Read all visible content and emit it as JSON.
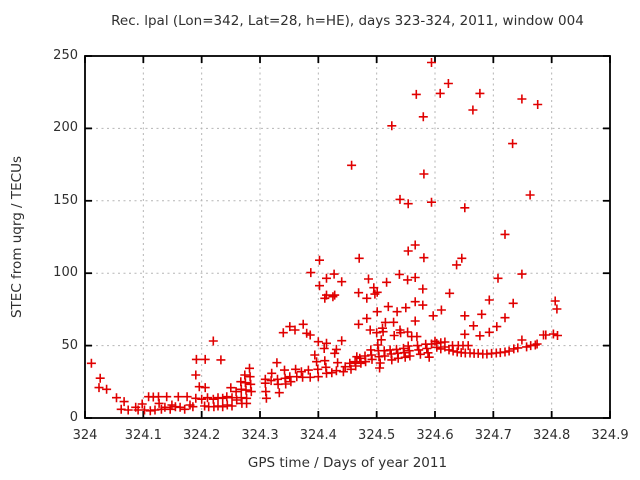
{
  "chart_data": {
    "type": "scatter",
    "title": "Rec. lpal (Lon=342, Lat=28, h=HE), days 323-324, 2011, window 004",
    "xlabel": "GPS time / Days of year 2011",
    "ylabel": "STEC from uqrg / TECUs",
    "xlim": [
      324,
      324.9
    ],
    "ylim": [
      0,
      250
    ],
    "xticks": [
      324,
      324.1,
      324.2,
      324.3,
      324.4,
      324.5,
      324.6,
      324.7,
      324.8,
      324.9
    ],
    "xtick_labels": [
      "324",
      "324.1",
      "324.2",
      "324.3",
      "324.4",
      "324.5",
      "324.6",
      "324.7",
      "324.8",
      "324.9"
    ],
    "yticks": [
      0,
      50,
      100,
      150,
      200,
      250
    ],
    "ytick_labels": [
      "0",
      "50",
      "100",
      "150",
      "200",
      "250"
    ],
    "grid": true,
    "legend": "none",
    "marker": "plus",
    "colors": {
      "marker": "#e00000",
      "grid": "#b5b5b5",
      "frame": "#000000",
      "text": "#2f2f2f"
    },
    "points": [
      [
        324.011,
        37.8
      ],
      [
        324.024,
        21.0
      ],
      [
        324.026,
        27.5
      ],
      [
        324.037,
        19.8
      ],
      [
        324.054,
        14.0
      ],
      [
        324.062,
        6.0
      ],
      [
        324.067,
        11.3
      ],
      [
        324.074,
        5.5
      ],
      [
        324.087,
        7.4
      ],
      [
        324.091,
        5.5
      ],
      [
        324.098,
        9.7
      ],
      [
        324.102,
        5.5
      ],
      [
        324.109,
        14.7
      ],
      [
        324.112,
        5.0
      ],
      [
        324.117,
        14.5
      ],
      [
        324.12,
        5.5
      ],
      [
        324.126,
        14.7
      ],
      [
        324.127,
        10.1
      ],
      [
        324.131,
        6.0
      ],
      [
        324.137,
        7.4
      ],
      [
        324.14,
        14.7
      ],
      [
        324.146,
        6.0
      ],
      [
        324.149,
        9.0
      ],
      [
        324.155,
        7.8
      ],
      [
        324.16,
        14.7
      ],
      [
        324.163,
        7.4
      ],
      [
        324.171,
        6.0
      ],
      [
        324.175,
        14.7
      ],
      [
        324.18,
        9.0
      ],
      [
        324.185,
        7.8
      ],
      [
        324.19,
        29.7
      ],
      [
        324.19,
        13.6
      ],
      [
        324.191,
        40.5
      ],
      [
        324.196,
        21.6
      ],
      [
        324.2,
        13.0
      ],
      [
        324.205,
        8.3
      ],
      [
        324.206,
        40.5
      ],
      [
        324.206,
        21.0
      ],
      [
        324.21,
        14.0
      ],
      [
        324.212,
        7.8
      ],
      [
        324.22,
        53.2
      ],
      [
        324.22,
        13.0
      ],
      [
        324.221,
        7.8
      ],
      [
        324.228,
        14.0
      ],
      [
        324.228,
        8.3
      ],
      [
        324.233,
        40.1
      ],
      [
        324.236,
        13.6
      ],
      [
        324.236,
        7.8
      ],
      [
        324.243,
        14.7
      ],
      [
        324.244,
        9.0
      ],
      [
        324.25,
        20.9
      ],
      [
        324.252,
        14.0
      ],
      [
        324.252,
        8.3
      ],
      [
        324.259,
        18.2
      ],
      [
        324.26,
        12.4
      ],
      [
        324.267,
        25.1
      ],
      [
        324.268,
        19.8
      ],
      [
        324.268,
        14.0
      ],
      [
        324.269,
        10.1
      ],
      [
        324.274,
        29.7
      ],
      [
        324.275,
        24.4
      ],
      [
        324.276,
        19.3
      ],
      [
        324.277,
        13.6
      ],
      [
        324.277,
        10.1
      ],
      [
        324.282,
        34.3
      ],
      [
        324.283,
        28.5
      ],
      [
        324.284,
        23.3
      ],
      [
        324.285,
        18.2
      ],
      [
        324.309,
        26.7
      ],
      [
        324.309,
        24.0
      ],
      [
        324.31,
        18.2
      ],
      [
        324.311,
        13.6
      ],
      [
        324.319,
        25.8
      ],
      [
        324.32,
        30.9
      ],
      [
        324.329,
        38.2
      ],
      [
        324.33,
        26.7
      ],
      [
        324.331,
        23.3
      ],
      [
        324.333,
        17.5
      ],
      [
        324.34,
        58.9
      ],
      [
        324.342,
        33.1
      ],
      [
        324.343,
        27.4
      ],
      [
        324.344,
        23.5
      ],
      [
        324.351,
        28.5
      ],
      [
        324.351,
        63.1
      ],
      [
        324.353,
        25.1
      ],
      [
        324.36,
        60.8
      ],
      [
        324.361,
        33.6
      ],
      [
        324.363,
        28.5
      ],
      [
        324.371,
        32.0
      ],
      [
        324.373,
        28.1
      ],
      [
        324.374,
        64.7
      ],
      [
        324.38,
        58.5
      ],
      [
        324.383,
        33.1
      ],
      [
        324.386,
        57.3
      ],
      [
        324.386,
        28.1
      ],
      [
        324.387,
        100.4
      ],
      [
        324.394,
        43.5
      ],
      [
        324.397,
        38.9
      ],
      [
        324.399,
        33.6
      ],
      [
        324.4,
        52.7
      ],
      [
        324.4,
        28.5
      ],
      [
        324.402,
        109.0
      ],
      [
        324.402,
        91.4
      ],
      [
        324.41,
        48.0
      ],
      [
        324.411,
        82.7
      ],
      [
        324.411,
        39.6
      ],
      [
        324.413,
        35.0
      ],
      [
        324.414,
        96.5
      ],
      [
        324.414,
        84.9
      ],
      [
        324.414,
        51.6
      ],
      [
        324.414,
        30.9
      ],
      [
        324.423,
        31.3
      ],
      [
        324.425,
        83.8
      ],
      [
        324.427,
        99.4
      ],
      [
        324.428,
        84.9
      ],
      [
        324.428,
        44.7
      ],
      [
        324.431,
        47.4
      ],
      [
        324.431,
        32.7
      ],
      [
        324.433,
        38.2
      ],
      [
        324.44,
        94.1
      ],
      [
        324.44,
        53.4
      ],
      [
        324.443,
        32.0
      ],
      [
        324.446,
        35.4
      ],
      [
        324.454,
        37.8
      ],
      [
        324.456,
        33.6
      ],
      [
        324.457,
        174.5
      ],
      [
        324.463,
        38.9
      ],
      [
        324.464,
        35.9
      ],
      [
        324.466,
        42.3
      ],
      [
        324.469,
        86.5
      ],
      [
        324.469,
        64.7
      ],
      [
        324.47,
        110.3
      ],
      [
        324.471,
        41.2
      ],
      [
        324.473,
        37.8
      ],
      [
        324.48,
        42.8
      ],
      [
        324.481,
        38.9
      ],
      [
        324.483,
        82.7
      ],
      [
        324.483,
        68.8
      ],
      [
        324.486,
        96.0
      ],
      [
        324.489,
        60.8
      ],
      [
        324.49,
        47.0
      ],
      [
        324.491,
        43.5
      ],
      [
        324.492,
        40.5
      ],
      [
        324.495,
        90.0
      ],
      [
        324.497,
        85.6
      ],
      [
        324.5,
        58.9
      ],
      [
        324.501,
        86.8
      ],
      [
        324.501,
        73.4
      ],
      [
        324.502,
        50.4
      ],
      [
        324.503,
        46.5
      ],
      [
        324.504,
        42.3
      ],
      [
        324.505,
        34.5
      ],
      [
        324.506,
        38.0
      ],
      [
        324.508,
        54.0
      ],
      [
        324.51,
        62.0
      ],
      [
        324.511,
        59.6
      ],
      [
        324.513,
        46.5
      ],
      [
        324.514,
        42.8
      ],
      [
        324.515,
        66.0
      ],
      [
        324.517,
        93.7
      ],
      [
        324.52,
        76.9
      ],
      [
        324.523,
        47.0
      ],
      [
        324.525,
        44.2
      ],
      [
        324.526,
        40.1
      ],
      [
        324.526,
        201.8
      ],
      [
        324.529,
        66.1
      ],
      [
        324.53,
        57.0
      ],
      [
        324.534,
        47.4
      ],
      [
        324.535,
        73.4
      ],
      [
        324.536,
        44.7
      ],
      [
        324.537,
        41.2
      ],
      [
        324.539,
        99.2
      ],
      [
        324.54,
        151.0
      ],
      [
        324.54,
        60.8
      ],
      [
        324.541,
        58.9
      ],
      [
        324.546,
        48.1
      ],
      [
        324.547,
        45.1
      ],
      [
        324.549,
        41.9
      ],
      [
        324.55,
        76.2
      ],
      [
        324.553,
        95.4
      ],
      [
        324.553,
        59.4
      ],
      [
        324.554,
        148.0
      ],
      [
        324.554,
        115.3
      ],
      [
        324.554,
        49.7
      ],
      [
        324.556,
        46.5
      ],
      [
        324.557,
        42.8
      ],
      [
        324.56,
        56.2
      ],
      [
        324.566,
        119.5
      ],
      [
        324.566,
        97.0
      ],
      [
        324.566,
        80.3
      ],
      [
        324.566,
        67.0
      ],
      [
        324.568,
        223.5
      ],
      [
        324.569,
        56.2
      ],
      [
        324.57,
        50.0
      ],
      [
        324.572,
        47.0
      ],
      [
        324.575,
        44.0
      ],
      [
        324.579,
        89.1
      ],
      [
        324.579,
        78.0
      ],
      [
        324.58,
        208.0
      ],
      [
        324.581,
        168.5
      ],
      [
        324.581,
        110.7
      ],
      [
        324.584,
        51.0
      ],
      [
        324.586,
        48.0
      ],
      [
        324.588,
        45.0
      ],
      [
        324.59,
        42.0
      ],
      [
        324.594,
        245.5
      ],
      [
        324.594,
        149.0
      ],
      [
        324.594,
        51.1
      ],
      [
        324.597,
        70.6
      ],
      [
        324.6,
        53.0
      ],
      [
        324.603,
        51.5
      ],
      [
        324.603,
        48.8
      ],
      [
        324.609,
        224.2
      ],
      [
        324.61,
        52.0
      ],
      [
        324.61,
        47.7
      ],
      [
        324.611,
        74.6
      ],
      [
        324.617,
        52.5
      ],
      [
        324.617,
        49.0
      ],
      [
        324.623,
        231.0
      ],
      [
        324.624,
        47.0
      ],
      [
        324.625,
        86.1
      ],
      [
        324.63,
        50.0
      ],
      [
        324.631,
        46.3
      ],
      [
        324.637,
        105.7
      ],
      [
        324.638,
        45.6
      ],
      [
        324.64,
        50.0
      ],
      [
        324.645,
        45.2
      ],
      [
        324.646,
        110.3
      ],
      [
        324.648,
        50.0
      ],
      [
        324.651,
        145.2
      ],
      [
        324.651,
        70.6
      ],
      [
        324.651,
        57.8
      ],
      [
        324.652,
        44.9
      ],
      [
        324.657,
        50.0
      ],
      [
        324.66,
        44.9
      ],
      [
        324.665,
        212.7
      ],
      [
        324.666,
        63.7
      ],
      [
        324.667,
        44.6
      ],
      [
        324.674,
        44.6
      ],
      [
        324.677,
        224.2
      ],
      [
        324.677,
        56.8
      ],
      [
        324.68,
        71.6
      ],
      [
        324.682,
        44.2
      ],
      [
        324.689,
        44.2
      ],
      [
        324.693,
        81.5
      ],
      [
        324.693,
        59.2
      ],
      [
        324.697,
        44.6
      ],
      [
        324.705,
        44.9
      ],
      [
        324.706,
        63.1
      ],
      [
        324.708,
        96.5
      ],
      [
        324.712,
        45.2
      ],
      [
        324.72,
        126.8
      ],
      [
        324.72,
        69.3
      ],
      [
        324.72,
        45.6
      ],
      [
        324.727,
        46.3
      ],
      [
        324.733,
        189.5
      ],
      [
        324.734,
        79.2
      ],
      [
        324.735,
        47.7
      ],
      [
        324.742,
        48.4
      ],
      [
        324.749,
        220.3
      ],
      [
        324.749,
        99.4
      ],
      [
        324.749,
        53.9
      ],
      [
        324.757,
        49.1
      ],
      [
        324.763,
        154.0
      ],
      [
        324.764,
        50.0
      ],
      [
        324.772,
        50.4
      ],
      [
        324.775,
        51.1
      ],
      [
        324.776,
        216.5
      ],
      [
        324.786,
        57.3
      ],
      [
        324.79,
        57.3
      ],
      [
        324.803,
        58.0
      ],
      [
        324.806,
        80.8
      ],
      [
        324.809,
        75.3
      ],
      [
        324.81,
        57.0
      ]
    ]
  }
}
